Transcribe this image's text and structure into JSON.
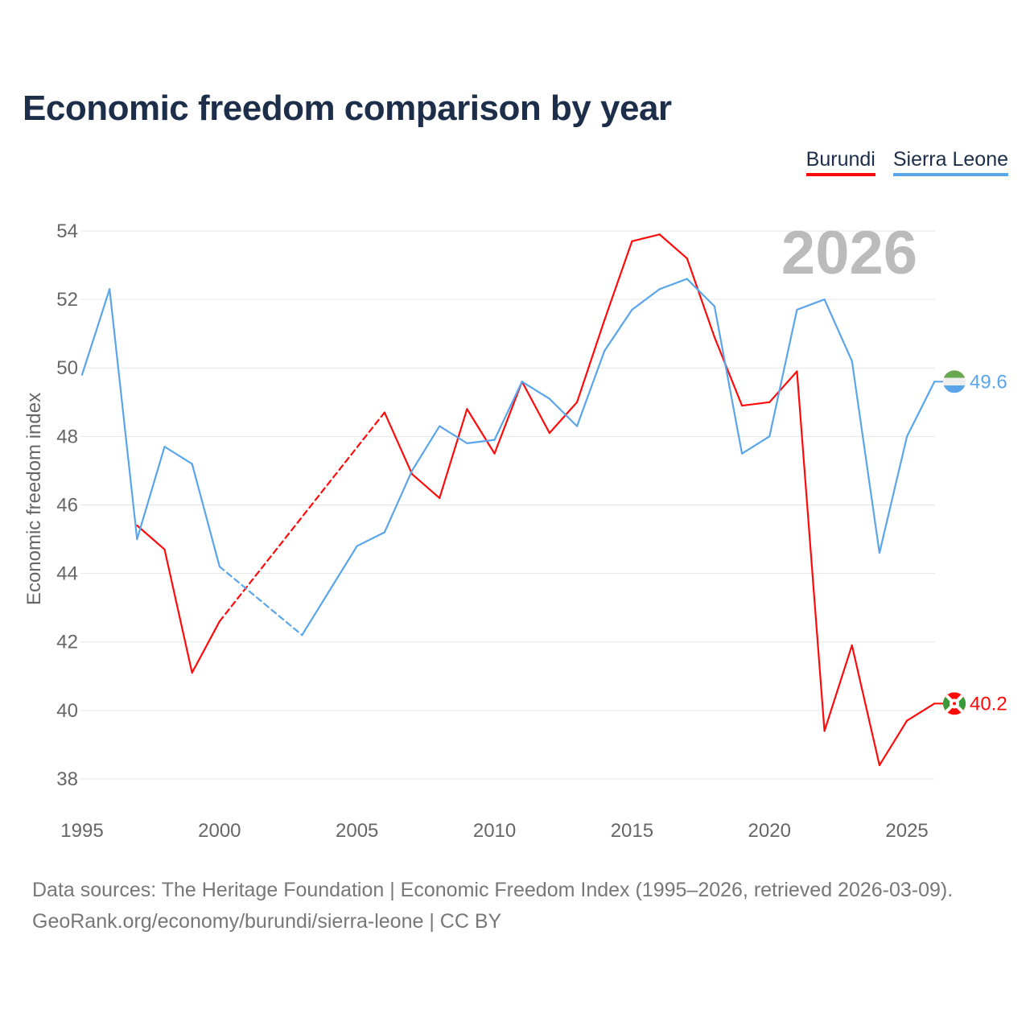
{
  "title": "Economic freedom comparison by year",
  "footer": {
    "line1": "Data sources: The Heritage Foundation | Economic Freedom Index (1995–2026, retrieved 2026-03-09).",
    "line2": "GeoRank.org/economy/burundi/sierra-leone | CC BY"
  },
  "chart_data": {
    "type": "line",
    "title": "Economic freedom comparison by year",
    "xlabel": "",
    "ylabel": "Economic freedom index",
    "xlim": [
      1995,
      2026
    ],
    "ylim": [
      37,
      55
    ],
    "x_ticks": [
      "1995",
      "2000",
      "2005",
      "2010",
      "2015",
      "2020",
      "2025"
    ],
    "y_ticks": [
      "38",
      "40",
      "42",
      "44",
      "46",
      "48",
      "50",
      "52",
      "54"
    ],
    "grid": true,
    "legend_placement": "top-right",
    "current_year_label": "2026",
    "x": [
      1995,
      1996,
      1997,
      1998,
      1999,
      2000,
      2001,
      2002,
      2003,
      2004,
      2005,
      2006,
      2007,
      2008,
      2009,
      2010,
      2011,
      2012,
      2013,
      2014,
      2015,
      2016,
      2017,
      2018,
      2019,
      2020,
      2021,
      2022,
      2023,
      2024,
      2025,
      2026
    ],
    "series": [
      {
        "name": "Burundi",
        "color": "#ff0a0a",
        "end_label": "40.2",
        "values": [
          null,
          null,
          45.4,
          44.7,
          41.1,
          42.6,
          null,
          null,
          null,
          null,
          null,
          48.7,
          46.9,
          46.2,
          48.8,
          47.5,
          49.6,
          48.1,
          49.0,
          51.4,
          53.7,
          53.9,
          53.2,
          50.9,
          48.9,
          49.0,
          49.9,
          39.4,
          41.9,
          38.4,
          39.7,
          40.2
        ]
      },
      {
        "name": "Sierra Leone",
        "color": "#5aa5ea",
        "end_label": "49.6",
        "values": [
          49.8,
          52.3,
          45.0,
          47.7,
          47.2,
          44.2,
          null,
          null,
          42.2,
          43.5,
          44.8,
          45.2,
          47.0,
          48.3,
          47.8,
          47.9,
          49.6,
          49.1,
          48.3,
          50.5,
          51.7,
          52.3,
          52.6,
          51.8,
          47.5,
          48.0,
          51.7,
          52.0,
          50.2,
          44.6,
          48.0,
          49.6
        ]
      }
    ]
  }
}
